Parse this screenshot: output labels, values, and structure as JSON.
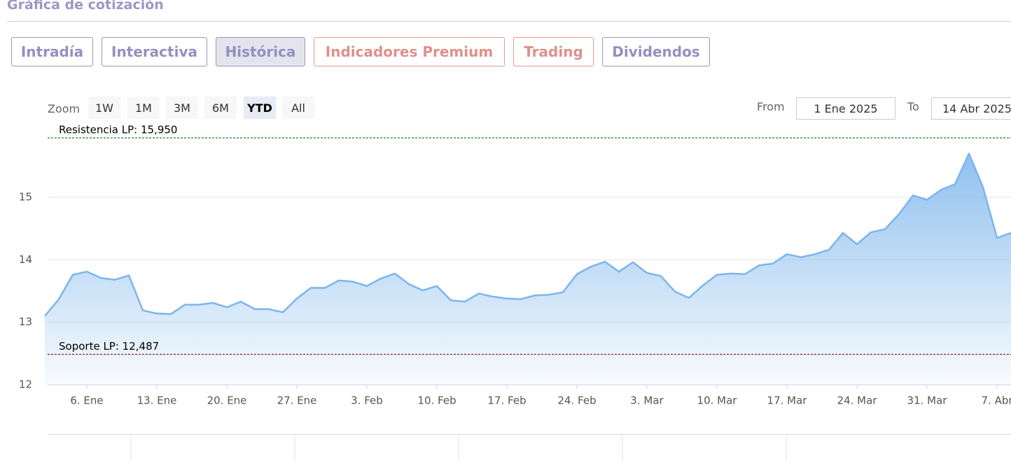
{
  "header": {
    "title": "Gráfica de cotización"
  },
  "tabs": [
    "Intradía",
    "Interactiva",
    "Histórica",
    "Indicadores Premium",
    "Trading",
    "Dividendos"
  ],
  "zoom": {
    "label": "Zoom",
    "buttons": [
      "1W",
      "1M",
      "3M",
      "6M",
      "YTD",
      "All"
    ]
  },
  "range": {
    "from_label": "From",
    "from": "1 Ene 2025",
    "to_label": "To",
    "to": "14 Abr 2025"
  },
  "chart_data": {
    "type": "area",
    "x": [
      "31. Dic",
      "2. Ene",
      "3. Ene",
      "6. Ene",
      "7. Ene",
      "8. Ene",
      "9. Ene",
      "10. Ene",
      "13. Ene",
      "14. Ene",
      "15. Ene",
      "16. Ene",
      "17. Ene",
      "20. Ene",
      "21. Ene",
      "22. Ene",
      "23. Ene",
      "24. Ene",
      "27. Ene",
      "28. Ene",
      "29. Ene",
      "30. Ene",
      "31. Ene",
      "3. Feb",
      "4. Feb",
      "5. Feb",
      "6. Feb",
      "7. Feb",
      "10. Feb",
      "11. Feb",
      "12. Feb",
      "13. Feb",
      "14. Feb",
      "17. Feb",
      "18. Feb",
      "19. Feb",
      "20. Feb",
      "21. Feb",
      "24. Feb",
      "25. Feb",
      "26. Feb",
      "27. Feb",
      "28. Feb",
      "3. Mar",
      "4. Mar",
      "5. Mar",
      "6. Mar",
      "7. Mar",
      "10. Mar",
      "11. Mar",
      "12. Mar",
      "13. Mar",
      "14. Mar",
      "17. Mar",
      "18. Mar",
      "19. Mar",
      "20. Mar",
      "21. Mar",
      "24. Mar",
      "25. Mar",
      "26. Mar",
      "27. Mar",
      "28. Mar",
      "31. Mar",
      "1. Abr",
      "2. Abr",
      "3. Abr",
      "4. Abr",
      "7. Abr",
      "8. Abr"
    ],
    "series": [
      {
        "color": "#7cb5ec",
        "values": [
          13.1,
          13.37,
          13.76,
          13.81,
          13.71,
          13.68,
          13.75,
          13.19,
          13.14,
          13.13,
          13.28,
          13.28,
          13.31,
          13.24,
          13.33,
          13.21,
          13.21,
          13.16,
          13.38,
          13.55,
          13.55,
          13.67,
          13.65,
          13.58,
          13.7,
          13.78,
          13.61,
          13.51,
          13.58,
          13.35,
          13.33,
          13.46,
          13.41,
          13.38,
          13.37,
          13.43,
          13.44,
          13.48,
          13.77,
          13.89,
          13.97,
          13.81,
          13.96,
          13.79,
          13.74,
          13.49,
          13.39,
          13.59,
          13.76,
          13.78,
          13.77,
          13.91,
          13.94,
          14.09,
          14.04,
          14.09,
          14.16,
          14.43,
          14.25,
          14.44,
          14.49,
          14.73,
          15.03,
          14.96,
          15.12,
          15.21,
          15.7,
          15.16,
          14.35,
          14.43
        ]
      }
    ],
    "xticks": [
      "6. Ene",
      "13. Ene",
      "20. Ene",
      "27. Ene",
      "3. Feb",
      "10. Feb",
      "17. Feb",
      "24. Feb",
      "3. Mar",
      "10. Mar",
      "17. Mar",
      "24. Mar",
      "31. Mar",
      "7. Abr"
    ],
    "ylim": [
      12,
      16.03
    ],
    "yticks": [
      12,
      13,
      14,
      15
    ],
    "grid": true,
    "plot_lines": [
      {
        "label": "Resistencia LP: 15,950",
        "value": 15.95,
        "color": "#1e7b1e"
      },
      {
        "label": "Soporte LP: 12,487",
        "value": 12.487,
        "color": "#8b1a2b"
      }
    ]
  }
}
